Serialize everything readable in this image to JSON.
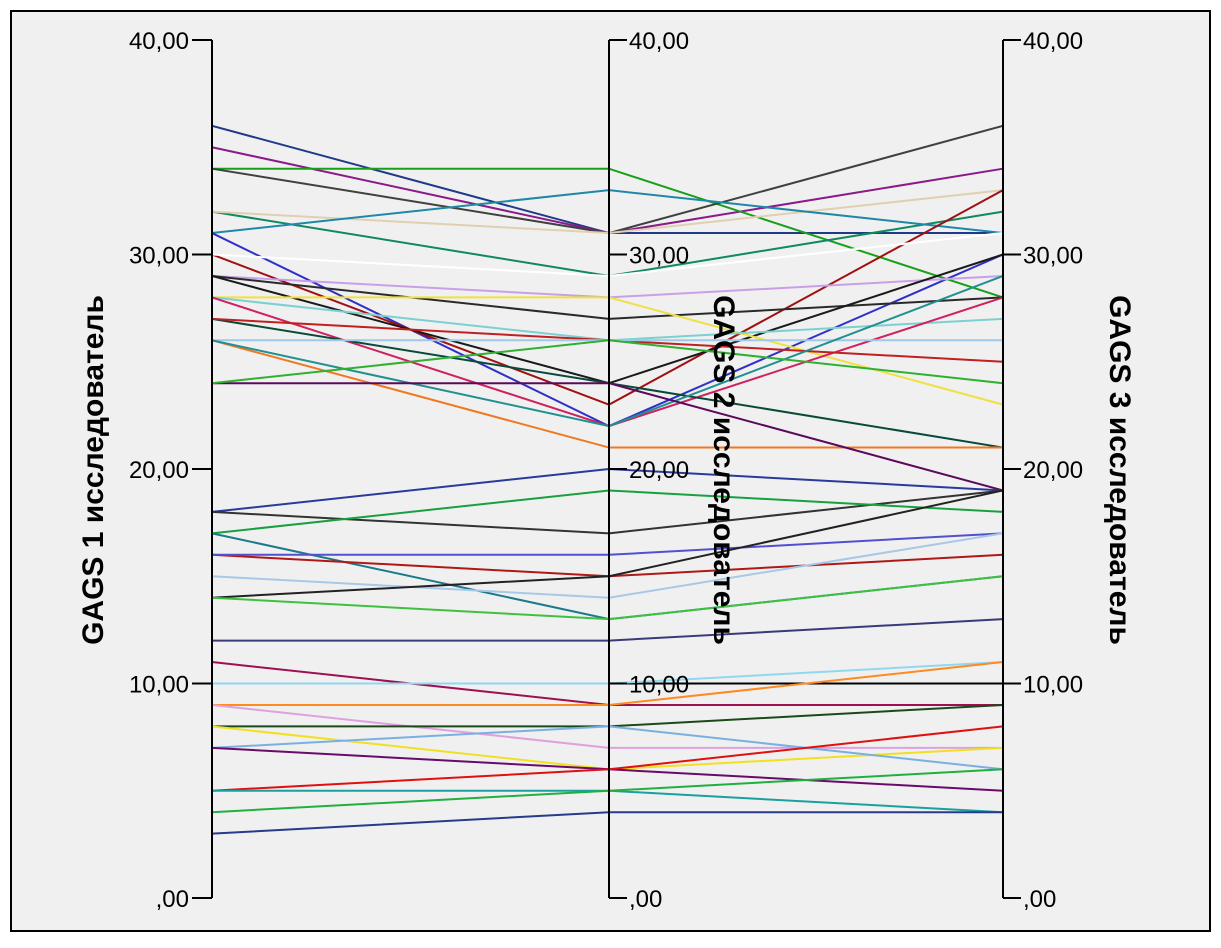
{
  "chart_data": {
    "type": "parallel_coordinates",
    "axes": [
      {
        "label": "GAGS 1 исследователь",
        "ticks": [
          ",00",
          "10,00",
          "20,00",
          "30,00",
          "40,00"
        ]
      },
      {
        "label": "GAGS 2 исследователь",
        "ticks": [
          ",00",
          "10,00",
          "20,00",
          "30,00",
          "40,00"
        ]
      },
      {
        "label": "GAGS 3 исследователь",
        "ticks": [
          ",00",
          "10,00",
          "20,00",
          "30,00",
          "40,00"
        ]
      }
    ],
    "ylim": [
      0,
      40
    ],
    "background": "#f0f0f0",
    "series": [
      {
        "values": [
          36,
          31,
          31
        ],
        "color": "#1f3a8a"
      },
      {
        "values": [
          35,
          31,
          34
        ],
        "color": "#8b1a8b"
      },
      {
        "values": [
          34,
          34,
          28
        ],
        "color": "#18a018"
      },
      {
        "values": [
          34,
          31,
          36
        ],
        "color": "#404040"
      },
      {
        "values": [
          32,
          29,
          32
        ],
        "color": "#0f8a5f"
      },
      {
        "values": [
          32,
          31,
          33
        ],
        "color": "#e0d0b0"
      },
      {
        "values": [
          31,
          33,
          31
        ],
        "color": "#1e88a8"
      },
      {
        "values": [
          31,
          22,
          30
        ],
        "color": "#3030c8"
      },
      {
        "values": [
          30,
          23,
          33
        ],
        "color": "#a01010"
      },
      {
        "values": [
          30,
          29,
          31
        ],
        "color": "#ffffff"
      },
      {
        "values": [
          29,
          28,
          29
        ],
        "color": "#c8a0e8"
      },
      {
        "values": [
          29,
          27,
          28
        ],
        "color": "#2a2a2a"
      },
      {
        "values": [
          29,
          24,
          30
        ],
        "color": "#1a1a1a"
      },
      {
        "values": [
          28,
          28,
          23
        ],
        "color": "#f0e040"
      },
      {
        "values": [
          28,
          26,
          27
        ],
        "color": "#7dd0d0"
      },
      {
        "values": [
          28,
          22,
          28
        ],
        "color": "#d02060"
      },
      {
        "values": [
          27,
          24,
          21
        ],
        "color": "#0a4a3a"
      },
      {
        "values": [
          27,
          26,
          25
        ],
        "color": "#c02020"
      },
      {
        "values": [
          26,
          21,
          21
        ],
        "color": "#f07820"
      },
      {
        "values": [
          26,
          26,
          26
        ],
        "color": "#a0c8e8"
      },
      {
        "values": [
          26,
          22,
          29
        ],
        "color": "#209090"
      },
      {
        "values": [
          24,
          24,
          19
        ],
        "color": "#5a0a5a"
      },
      {
        "values": [
          24,
          26,
          24
        ],
        "color": "#30b030"
      },
      {
        "values": [
          18,
          20,
          19
        ],
        "color": "#2a3a9a"
      },
      {
        "values": [
          18,
          17,
          19
        ],
        "color": "#333333"
      },
      {
        "values": [
          17,
          19,
          18
        ],
        "color": "#18a040"
      },
      {
        "values": [
          17,
          13,
          15
        ],
        "color": "#1a7a8a"
      },
      {
        "values": [
          16,
          15,
          16
        ],
        "color": "#b01818"
      },
      {
        "values": [
          16,
          16,
          17
        ],
        "color": "#5050d0"
      },
      {
        "values": [
          15,
          14,
          17
        ],
        "color": "#a8c8e8"
      },
      {
        "values": [
          14,
          15,
          19
        ],
        "color": "#222222"
      },
      {
        "values": [
          14,
          13,
          15
        ],
        "color": "#40c040"
      },
      {
        "values": [
          12,
          12,
          13
        ],
        "color": "#3a3a7a"
      },
      {
        "values": [
          11,
          9,
          9
        ],
        "color": "#a01050"
      },
      {
        "values": [
          10,
          10,
          10
        ],
        "color": "#000000"
      },
      {
        "values": [
          10,
          10,
          11
        ],
        "color": "#90d8f0"
      },
      {
        "values": [
          9,
          9,
          11
        ],
        "color": "#ff8a20"
      },
      {
        "values": [
          9,
          7,
          7
        ],
        "color": "#e0a0e0"
      },
      {
        "values": [
          8,
          8,
          9
        ],
        "color": "#1a4a1a"
      },
      {
        "values": [
          8,
          6,
          7
        ],
        "color": "#f0e020"
      },
      {
        "values": [
          7,
          8,
          6
        ],
        "color": "#7ab0e0"
      },
      {
        "values": [
          7,
          6,
          5
        ],
        "color": "#6a0a6a"
      },
      {
        "values": [
          5,
          6,
          8
        ],
        "color": "#e01010"
      },
      {
        "values": [
          5,
          5,
          4
        ],
        "color": "#1aa0a0"
      },
      {
        "values": [
          4,
          5,
          6
        ],
        "color": "#20b040"
      },
      {
        "values": [
          3,
          4,
          4
        ],
        "color": "#2a3a8a"
      }
    ]
  }
}
